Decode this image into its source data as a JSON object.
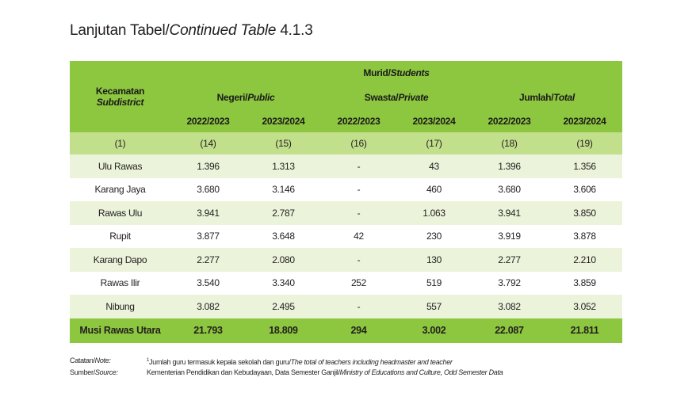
{
  "title": {
    "prefix": "Lanjutan Tabel/",
    "italic": "Continued Table",
    "number": " 4.1.3"
  },
  "header": {
    "col_name": "Kecamatan",
    "col_name_en": "Subdistrict",
    "murid": "Murid/",
    "murid_en": "Students",
    "groups": [
      {
        "label": "Negeri/",
        "label_en": "Public"
      },
      {
        "label": "Swasta/",
        "label_en": "Private"
      },
      {
        "label": "Jumlah/",
        "label_en": "Total"
      }
    ],
    "years": [
      "2022/2023",
      "2023/2024",
      "2022/2023",
      "2023/2024",
      "2022/2023",
      "2023/2024"
    ],
    "col_numbers": [
      "(1)",
      "(14)",
      "(15)",
      "(16)",
      "(17)",
      "(18)",
      "(19)"
    ]
  },
  "rows": [
    {
      "name": "Ulu Rawas",
      "values": [
        "1.396",
        "1.313",
        "-",
        "43",
        "1.396",
        "1.356"
      ]
    },
    {
      "name": "Karang Jaya",
      "values": [
        "3.680",
        "3.146",
        "-",
        "460",
        "3.680",
        "3.606"
      ]
    },
    {
      "name": "Rawas Ulu",
      "values": [
        "3.941",
        "2.787",
        "-",
        "1.063",
        "3.941",
        "3.850"
      ]
    },
    {
      "name": "Rupit",
      "values": [
        "3.877",
        "3.648",
        "42",
        "230",
        "3.919",
        "3.878"
      ]
    },
    {
      "name": "Karang Dapo",
      "values": [
        "2.277",
        "2.080",
        "-",
        "130",
        "2.277",
        "2.210"
      ]
    },
    {
      "name": "Rawas Ilir",
      "values": [
        "3.540",
        "3.340",
        "252",
        "519",
        "3.792",
        "3.859"
      ]
    },
    {
      "name": "Nibung",
      "values": [
        "3.082",
        "2.495",
        "-",
        "557",
        "3.082",
        "3.052"
      ]
    }
  ],
  "total": {
    "name": "Musi Rawas Utara",
    "values": [
      "21.793",
      "18.809",
      "294",
      "3.002",
      "22.087",
      "21.811"
    ]
  },
  "notes": {
    "catatan_label": "Catatan/",
    "catatan_label_en": "Note:",
    "catatan_sup": "1",
    "catatan_text": "Jumlah guru termasuk kepala sekolah dan guru/",
    "catatan_text_en": "The total of teachers including headmaster and teacher",
    "sumber_label": "Sumber/",
    "sumber_label_en": "Source:",
    "sumber_text": "Kementerian Pendidikan dan Kebudayaan, Data Semester Ganjil/",
    "sumber_text_en": "Ministry of Educations and Culture, Odd Semester Data"
  },
  "colors": {
    "header_green": "#8dc63f",
    "number_row_green": "#c2df8c",
    "alt_row": "#ebf3da"
  }
}
